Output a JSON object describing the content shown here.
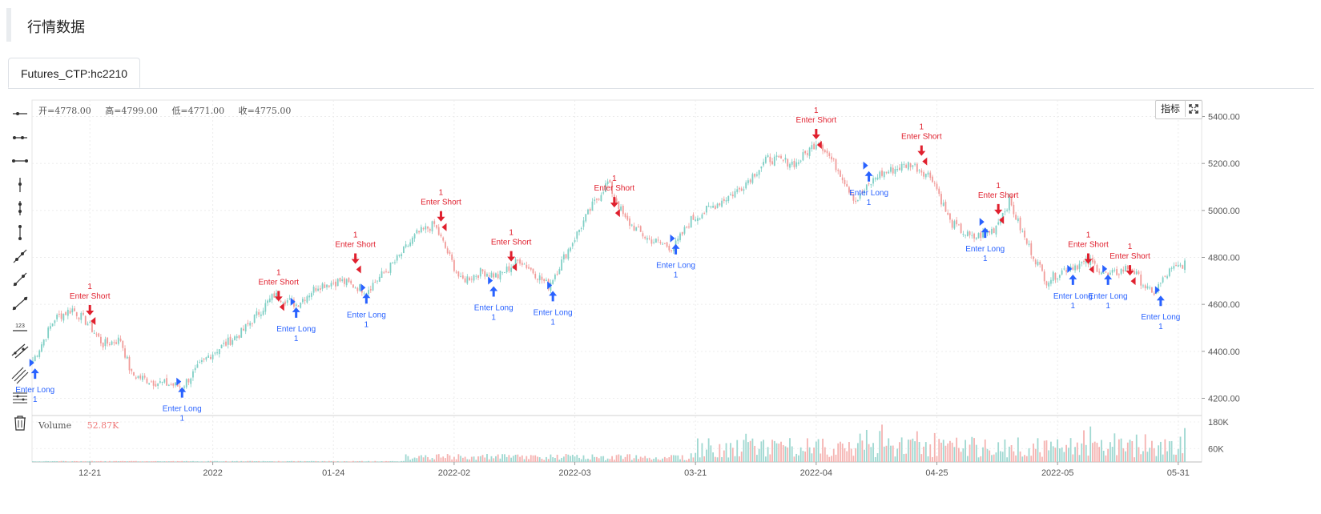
{
  "page": {
    "title": "行情数据"
  },
  "tabs": [
    {
      "label": "Futures_CTP:hc2210"
    }
  ],
  "toolbar": {
    "tools": [
      "horizontal-ray-icon",
      "horizontal-segment-icon",
      "horizontal-line-icon",
      "vertical-ray-icon",
      "vertical-segment-icon",
      "vertical-line-icon",
      "trend-ray-icon",
      "trend-segment-icon",
      "trend-line-icon",
      "price-label-icon",
      "parallel-channel-icon",
      "multi-line-icon",
      "horizontal-lines-icon",
      "trash-icon"
    ]
  },
  "ohlc": {
    "open": "开=4778.00",
    "high": "高=4799.00",
    "low": "低=4771.00",
    "close": "收=4775.00"
  },
  "volume": {
    "label": "Volume",
    "value": "52.87K"
  },
  "buttons": {
    "indicator": "指标"
  },
  "colors": {
    "up": "#26a69a",
    "down": "#ef5350",
    "long": "#2962ff",
    "short": "#e0202e"
  },
  "chart_data": {
    "type": "candlestick",
    "y_ticks": [
      "4200.00",
      "4400.00",
      "4600.00",
      "4800.00",
      "5000.00",
      "5200.00",
      "5400.00"
    ],
    "y_range": [
      4130,
      5470
    ],
    "volume_ticks": [
      "60K",
      "180K"
    ],
    "volume_range": [
      0,
      205000
    ],
    "x_ticks": [
      {
        "label": "12-21",
        "bar": 26
      },
      {
        "label": "2022",
        "bar": 82
      },
      {
        "label": "01-24",
        "bar": 137
      },
      {
        "label": "2022-02",
        "bar": 192
      },
      {
        "label": "2022-03",
        "bar": 247
      },
      {
        "label": "03-21",
        "bar": 302
      },
      {
        "label": "2022-04",
        "bar": 357
      },
      {
        "label": "04-25",
        "bar": 412
      },
      {
        "label": "2022-05",
        "bar": 467
      },
      {
        "label": "05-31",
        "bar": 522
      }
    ],
    "bar_count": 526,
    "anchors": [
      [
        0,
        4360
      ],
      [
        10,
        4540
      ],
      [
        18,
        4580
      ],
      [
        25,
        4520
      ],
      [
        32,
        4430
      ],
      [
        40,
        4450
      ],
      [
        45,
        4300
      ],
      [
        55,
        4270
      ],
      [
        68,
        4250
      ],
      [
        80,
        4380
      ],
      [
        95,
        4480
      ],
      [
        110,
        4640
      ],
      [
        120,
        4600
      ],
      [
        130,
        4680
      ],
      [
        140,
        4700
      ],
      [
        152,
        4660
      ],
      [
        165,
        4780
      ],
      [
        175,
        4900
      ],
      [
        183,
        4940
      ],
      [
        195,
        4700
      ],
      [
        205,
        4740
      ],
      [
        212,
        4720
      ],
      [
        222,
        4790
      ],
      [
        235,
        4680
      ],
      [
        245,
        4850
      ],
      [
        255,
        5020
      ],
      [
        262,
        5120
      ],
      [
        270,
        4960
      ],
      [
        280,
        4880
      ],
      [
        292,
        4840
      ],
      [
        300,
        4960
      ],
      [
        312,
        5030
      ],
      [
        322,
        5090
      ],
      [
        335,
        5220
      ],
      [
        348,
        5200
      ],
      [
        358,
        5300
      ],
      [
        368,
        5160
      ],
      [
        375,
        5040
      ],
      [
        385,
        5150
      ],
      [
        400,
        5200
      ],
      [
        410,
        5140
      ],
      [
        418,
        4950
      ],
      [
        428,
        4880
      ],
      [
        438,
        4920
      ],
      [
        445,
        5040
      ],
      [
        452,
        4880
      ],
      [
        462,
        4700
      ],
      [
        472,
        4760
      ],
      [
        482,
        4780
      ],
      [
        490,
        4720
      ],
      [
        500,
        4760
      ],
      [
        510,
        4640
      ],
      [
        518,
        4740
      ],
      [
        526,
        4780
      ]
    ],
    "signals": [
      {
        "type": "long",
        "bar": 1,
        "price": 4300,
        "text": "Enter Long",
        "qty": "1"
      },
      {
        "type": "short",
        "bar": 26,
        "price": 4580,
        "text": "Enter Short",
        "qty": "1"
      },
      {
        "type": "long",
        "bar": 68,
        "price": 4220,
        "text": "Enter Long",
        "qty": "1"
      },
      {
        "type": "short",
        "bar": 112,
        "price": 4640,
        "text": "Enter Short",
        "qty": "1"
      },
      {
        "type": "long",
        "bar": 120,
        "price": 4560,
        "text": "Enter Long",
        "qty": "1"
      },
      {
        "type": "short",
        "bar": 147,
        "price": 4800,
        "text": "Enter Short",
        "qty": "1"
      },
      {
        "type": "long",
        "bar": 152,
        "price": 4620,
        "text": "Enter Long",
        "qty": "1"
      },
      {
        "type": "short",
        "bar": 186,
        "price": 4980,
        "text": "Enter Short",
        "qty": "1"
      },
      {
        "type": "long",
        "bar": 210,
        "price": 4650,
        "text": "Enter Long",
        "qty": "1"
      },
      {
        "type": "short",
        "bar": 218,
        "price": 4810,
        "text": "Enter Short",
        "qty": "1"
      },
      {
        "type": "long",
        "bar": 237,
        "price": 4630,
        "text": "Enter Long",
        "qty": "1"
      },
      {
        "type": "short",
        "bar": 265,
        "price": 5040,
        "text": "Enter Short",
        "qty": "1"
      },
      {
        "type": "long",
        "bar": 293,
        "price": 4830,
        "text": "Enter Long",
        "qty": "1"
      },
      {
        "type": "short",
        "bar": 357,
        "price": 5330,
        "text": "Enter Short",
        "qty": "1"
      },
      {
        "type": "long",
        "bar": 381,
        "price": 5140,
        "text": "Enter Long",
        "qty": "1"
      },
      {
        "type": "short",
        "bar": 405,
        "price": 5260,
        "text": "Enter Short",
        "qty": "1"
      },
      {
        "type": "long",
        "bar": 434,
        "price": 4900,
        "text": "Enter Long",
        "qty": "1"
      },
      {
        "type": "short",
        "bar": 440,
        "price": 5010,
        "text": "Enter Short",
        "qty": "1"
      },
      {
        "type": "long",
        "bar": 474,
        "price": 4700,
        "text": "Enter Long",
        "qty": "1"
      },
      {
        "type": "short",
        "bar": 481,
        "price": 4800,
        "text": "Enter Short",
        "qty": "1"
      },
      {
        "type": "long",
        "bar": 490,
        "price": 4700,
        "text": "Enter Long",
        "qty": "1"
      },
      {
        "type": "short",
        "bar": 500,
        "price": 4750,
        "text": "Enter Short",
        "qty": "1"
      },
      {
        "type": "long",
        "bar": 514,
        "price": 4610,
        "text": "Enter Long",
        "qty": "1"
      }
    ]
  }
}
